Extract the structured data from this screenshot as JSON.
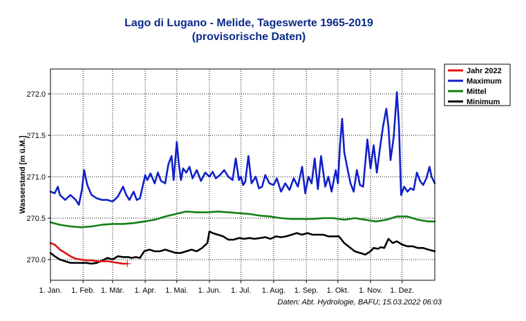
{
  "chart_data": {
    "type": "line",
    "title": "Lago di Lugano - Melide, Tageswerte 1965-2019",
    "subtitle": "(provisorische Daten)",
    "ylabel": "Wasserstand [m ü.M.]",
    "xlabel": "",
    "x_unit": "day of year",
    "xlim": [
      1,
      366
    ],
    "ylim": [
      269.75,
      272.3
    ],
    "y_ticks": [
      270.0,
      270.5,
      271.0,
      271.5,
      272.0
    ],
    "y_tick_labels": [
      "270.0",
      "270.5",
      "271.0",
      "271.5",
      "272.0"
    ],
    "x_ticks": [
      1,
      32,
      60,
      91,
      121,
      152,
      182,
      213,
      244,
      274,
      305,
      335
    ],
    "x_tick_labels": [
      "1. Jan.",
      "1. Feb.",
      "1. Mär.",
      "1. Apr.",
      "1. Mai.",
      "1. Jun.",
      "1. Jul.",
      "1. Aug.",
      "1. Sep.",
      "1. Okt.",
      "1. Nov.",
      "1. Dez."
    ],
    "grid": true,
    "legend_position": "right-top",
    "series": [
      {
        "name": "Jahr 2022",
        "color": "#e01010",
        "x": [
          1,
          5,
          10,
          15,
          20,
          25,
          30,
          35,
          40,
          45,
          50,
          55,
          60,
          65,
          70,
          74
        ],
        "y": [
          270.2,
          270.18,
          270.12,
          270.08,
          270.04,
          270.01,
          270.0,
          269.99,
          269.99,
          269.98,
          269.98,
          269.98,
          269.97,
          269.96,
          269.95,
          269.95
        ]
      },
      {
        "name": "Maximum",
        "color": "#1020c8",
        "x": [
          1,
          5,
          8,
          10,
          15,
          20,
          25,
          28,
          31,
          33,
          36,
          40,
          45,
          50,
          55,
          60,
          65,
          70,
          73,
          76,
          80,
          83,
          86,
          91,
          93,
          96,
          100,
          103,
          106,
          110,
          113,
          116,
          118,
          121,
          123,
          125,
          127,
          130,
          133,
          136,
          140,
          144,
          148,
          152,
          155,
          158,
          162,
          166,
          170,
          174,
          177,
          180,
          182,
          184,
          186,
          189,
          192,
          196,
          199,
          202,
          205,
          209,
          213,
          216,
          220,
          224,
          228,
          232,
          236,
          240,
          243,
          246,
          249,
          252,
          255,
          258,
          262,
          265,
          268,
          272,
          274,
          276,
          278,
          280,
          283,
          286,
          289,
          292,
          295,
          298,
          302,
          305,
          308,
          311,
          314,
          317,
          320,
          322,
          324,
          327,
          330,
          332,
          334,
          337,
          340,
          343,
          346,
          349,
          352,
          355,
          358,
          361,
          363,
          366
        ],
        "y": [
          270.82,
          270.8,
          270.88,
          270.78,
          270.72,
          270.78,
          270.72,
          270.66,
          270.85,
          271.08,
          270.9,
          270.78,
          270.74,
          270.72,
          270.72,
          270.7,
          270.76,
          270.88,
          270.78,
          270.72,
          270.82,
          270.72,
          270.74,
          271.02,
          270.96,
          271.04,
          270.92,
          271.05,
          270.95,
          270.92,
          271.15,
          271.25,
          270.96,
          271.42,
          271.15,
          270.96,
          271.1,
          271.05,
          271.12,
          270.98,
          271.08,
          270.95,
          271.05,
          271.0,
          271.06,
          270.98,
          271.02,
          271.08,
          271.0,
          270.96,
          271.22,
          270.96,
          271.0,
          270.9,
          270.94,
          271.25,
          270.92,
          271.0,
          270.86,
          270.88,
          271.02,
          270.92,
          270.9,
          270.98,
          270.82,
          270.92,
          270.84,
          270.98,
          270.88,
          271.12,
          270.8,
          271.0,
          270.92,
          271.22,
          270.85,
          271.25,
          270.88,
          271.0,
          270.82,
          271.08,
          270.92,
          271.38,
          271.7,
          271.3,
          271.1,
          270.92,
          270.82,
          271.08,
          270.9,
          270.88,
          271.45,
          271.1,
          271.38,
          271.05,
          271.35,
          271.62,
          271.82,
          271.6,
          271.2,
          271.48,
          272.02,
          271.62,
          270.78,
          270.88,
          270.82,
          270.86,
          270.84,
          271.05,
          270.95,
          270.9,
          270.98,
          271.12,
          271.0,
          270.92
        ]
      },
      {
        "name": "Mittel",
        "color": "#108010",
        "x": [
          1,
          10,
          20,
          30,
          40,
          50,
          60,
          70,
          80,
          90,
          100,
          110,
          120,
          130,
          140,
          150,
          160,
          170,
          180,
          190,
          200,
          210,
          220,
          230,
          240,
          250,
          260,
          270,
          280,
          290,
          300,
          310,
          320,
          330,
          340,
          350,
          360,
          366
        ],
        "y": [
          270.45,
          270.42,
          270.4,
          270.39,
          270.4,
          270.42,
          270.43,
          270.43,
          270.44,
          270.46,
          270.48,
          270.52,
          270.55,
          270.58,
          270.57,
          270.57,
          270.58,
          270.57,
          270.56,
          270.55,
          270.53,
          270.52,
          270.5,
          270.49,
          270.49,
          270.49,
          270.5,
          270.5,
          270.48,
          270.5,
          270.48,
          270.46,
          270.48,
          270.52,
          270.52,
          270.48,
          270.46,
          270.46
        ]
      },
      {
        "name": "Minimum",
        "color": "#000000",
        "x": [
          1,
          5,
          10,
          15,
          20,
          25,
          30,
          35,
          40,
          45,
          52,
          55,
          60,
          65,
          70,
          75,
          78,
          82,
          86,
          90,
          95,
          100,
          105,
          110,
          115,
          120,
          125,
          130,
          135,
          140,
          145,
          150,
          152,
          155,
          160,
          165,
          170,
          175,
          180,
          185,
          190,
          195,
          200,
          205,
          210,
          215,
          220,
          225,
          230,
          235,
          240,
          245,
          250,
          255,
          260,
          265,
          270,
          275,
          280,
          285,
          290,
          295,
          300,
          305,
          308,
          312,
          315,
          318,
          322,
          326,
          330,
          335,
          340,
          345,
          350,
          355,
          360,
          366
        ],
        "y": [
          270.08,
          270.04,
          270.0,
          269.98,
          269.96,
          269.96,
          269.96,
          269.96,
          269.95,
          269.96,
          270.0,
          270.02,
          270.0,
          270.04,
          270.03,
          270.03,
          270.02,
          270.03,
          270.02,
          270.1,
          270.12,
          270.1,
          270.1,
          270.12,
          270.1,
          270.08,
          270.08,
          270.1,
          270.12,
          270.1,
          270.14,
          270.2,
          270.34,
          270.32,
          270.3,
          270.28,
          270.24,
          270.24,
          270.26,
          270.25,
          270.26,
          270.25,
          270.26,
          270.27,
          270.25,
          270.28,
          270.27,
          270.28,
          270.3,
          270.32,
          270.3,
          270.32,
          270.3,
          270.3,
          270.3,
          270.28,
          270.28,
          270.28,
          270.2,
          270.15,
          270.1,
          270.08,
          270.06,
          270.1,
          270.14,
          270.13,
          270.15,
          270.14,
          270.25,
          270.2,
          270.22,
          270.18,
          270.16,
          270.16,
          270.14,
          270.14,
          270.12,
          270.1
        ]
      }
    ],
    "annotation": "Daten: Abt. Hydrologie, BAFU; 15.03.2022 06:03"
  }
}
